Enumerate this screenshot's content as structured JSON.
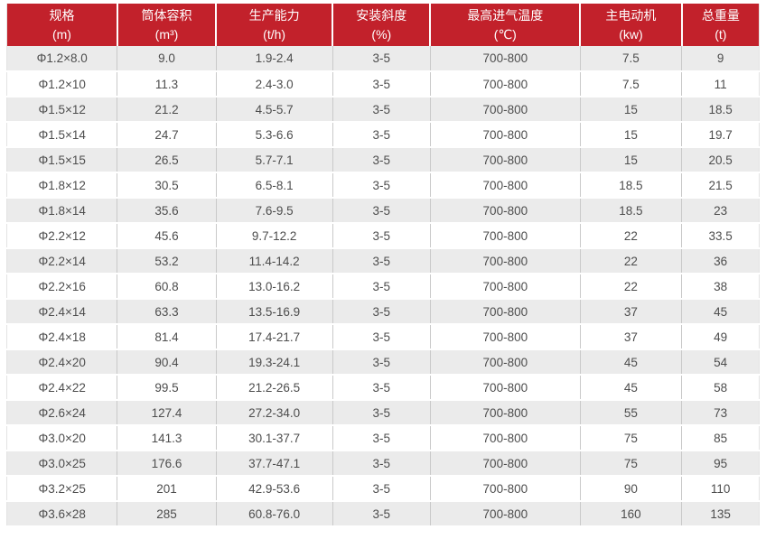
{
  "colors": {
    "header_bg": "#c2212b",
    "header_text": "#ffffff",
    "row_alt_bg": "#ebebeb",
    "row_bg": "#ffffff",
    "cell_border": "#c9c9c9",
    "body_text": "#4d4d4d"
  },
  "chart_data": {
    "type": "table",
    "title": "",
    "columns": [
      {
        "label": "规格",
        "unit": "(m)"
      },
      {
        "label": "筒体容积",
        "unit": "(m³)"
      },
      {
        "label": "生产能力",
        "unit": "(t/h)"
      },
      {
        "label": "安装斜度",
        "unit": "(%)"
      },
      {
        "label": "最高进气温度",
        "unit": "(℃)"
      },
      {
        "label": "主电动机",
        "unit": "(kw)"
      },
      {
        "label": "总重量",
        "unit": "(t)"
      }
    ],
    "rows": [
      [
        "Φ1.2×8.0",
        "9.0",
        "1.9-2.4",
        "3-5",
        "700-800",
        "7.5",
        "9"
      ],
      [
        "Φ1.2×10",
        "11.3",
        "2.4-3.0",
        "3-5",
        "700-800",
        "7.5",
        "11"
      ],
      [
        "Φ1.5×12",
        "21.2",
        "4.5-5.7",
        "3-5",
        "700-800",
        "15",
        "18.5"
      ],
      [
        "Φ1.5×14",
        "24.7",
        "5.3-6.6",
        "3-5",
        "700-800",
        "15",
        "19.7"
      ],
      [
        "Φ1.5×15",
        "26.5",
        "5.7-7.1",
        "3-5",
        "700-800",
        "15",
        "20.5"
      ],
      [
        "Φ1.8×12",
        "30.5",
        "6.5-8.1",
        "3-5",
        "700-800",
        "18.5",
        "21.5"
      ],
      [
        "Φ1.8×14",
        "35.6",
        "7.6-9.5",
        "3-5",
        "700-800",
        "18.5",
        "23"
      ],
      [
        "Φ2.2×12",
        "45.6",
        "9.7-12.2",
        "3-5",
        "700-800",
        "22",
        "33.5"
      ],
      [
        "Φ2.2×14",
        "53.2",
        "11.4-14.2",
        "3-5",
        "700-800",
        "22",
        "36"
      ],
      [
        "Φ2.2×16",
        "60.8",
        "13.0-16.2",
        "3-5",
        "700-800",
        "22",
        "38"
      ],
      [
        "Φ2.4×14",
        "63.3",
        "13.5-16.9",
        "3-5",
        "700-800",
        "37",
        "45"
      ],
      [
        "Φ2.4×18",
        "81.4",
        "17.4-21.7",
        "3-5",
        "700-800",
        "37",
        "49"
      ],
      [
        "Φ2.4×20",
        "90.4",
        "19.3-24.1",
        "3-5",
        "700-800",
        "45",
        "54"
      ],
      [
        "Φ2.4×22",
        "99.5",
        "21.2-26.5",
        "3-5",
        "700-800",
        "45",
        "58"
      ],
      [
        "Φ2.6×24",
        "127.4",
        "27.2-34.0",
        "3-5",
        "700-800",
        "55",
        "73"
      ],
      [
        "Φ3.0×20",
        "141.3",
        "30.1-37.7",
        "3-5",
        "700-800",
        "75",
        "85"
      ],
      [
        "Φ3.0×25",
        "176.6",
        "37.7-47.1",
        "3-5",
        "700-800",
        "75",
        "95"
      ],
      [
        "Φ3.2×25",
        "201",
        "42.9-53.6",
        "3-5",
        "700-800",
        "90",
        "110"
      ],
      [
        "Φ3.6×28",
        "285",
        "60.8-76.0",
        "3-5",
        "700-800",
        "160",
        "135"
      ]
    ],
    "column_widths_pct": [
      14.7,
      13.1,
      15.5,
      13.0,
      19.9,
      13.5,
      10.3
    ],
    "layout": {
      "grid": true,
      "striped": true,
      "first_stripe": "alt"
    }
  }
}
